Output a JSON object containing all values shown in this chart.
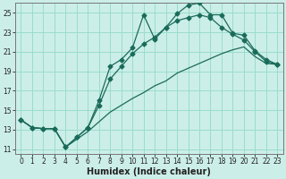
{
  "xlabel": "Humidex (Indice chaleur)",
  "ylabel": "",
  "bg_color": "#cceee8",
  "grid_color": "#99ddcc",
  "line_color": "#1a6b5a",
  "xlim": [
    -0.5,
    23.5
  ],
  "ylim": [
    10.5,
    26.0
  ],
  "yticks": [
    11,
    13,
    15,
    17,
    19,
    21,
    23,
    25
  ],
  "xticks": [
    0,
    1,
    2,
    3,
    4,
    5,
    6,
    7,
    8,
    9,
    10,
    11,
    12,
    13,
    14,
    15,
    16,
    17,
    18,
    19,
    20,
    21,
    22,
    23
  ],
  "series1_x": [
    0,
    1,
    2,
    3,
    4,
    5,
    6,
    7,
    8,
    9,
    10,
    11,
    12,
    13,
    14,
    15,
    16,
    17,
    18,
    19,
    20,
    21,
    22,
    23
  ],
  "series1_y": [
    14.0,
    13.2,
    13.1,
    13.1,
    11.2,
    12.2,
    13.2,
    16.0,
    19.5,
    20.2,
    21.4,
    24.8,
    22.3,
    23.5,
    24.9,
    25.8,
    26.0,
    24.8,
    24.8,
    22.9,
    22.7,
    21.1,
    20.2,
    19.7
  ],
  "series2_x": [
    0,
    1,
    2,
    3,
    4,
    5,
    6,
    7,
    8,
    9,
    10,
    11,
    12,
    13,
    14,
    15,
    16,
    17,
    18,
    19,
    20,
    21,
    22,
    23
  ],
  "series2_y": [
    14.0,
    13.2,
    13.1,
    13.1,
    11.2,
    12.2,
    13.2,
    15.5,
    18.2,
    19.5,
    20.8,
    21.8,
    22.5,
    23.5,
    24.2,
    24.5,
    24.8,
    24.5,
    23.5,
    22.8,
    22.2,
    21.0,
    20.0,
    19.7
  ],
  "series3_x": [
    0,
    1,
    2,
    3,
    4,
    5,
    6,
    7,
    8,
    9,
    10,
    11,
    12,
    13,
    14,
    15,
    16,
    17,
    18,
    19,
    20,
    21,
    22,
    23
  ],
  "series3_y": [
    14.0,
    13.2,
    13.1,
    13.1,
    11.2,
    12.0,
    12.8,
    13.8,
    14.8,
    15.5,
    16.2,
    16.8,
    17.5,
    18.0,
    18.8,
    19.3,
    19.8,
    20.3,
    20.8,
    21.2,
    21.5,
    20.5,
    19.8,
    19.7
  ],
  "title_fontsize": 7,
  "xlabel_fontsize": 7,
  "tick_fontsize": 5.5
}
